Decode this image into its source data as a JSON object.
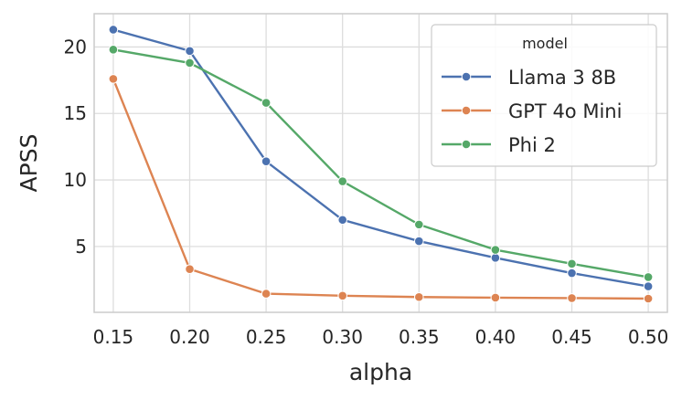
{
  "chart_data": {
    "type": "line",
    "xlabel": "alpha",
    "ylabel": "APSS",
    "x": [
      0.15,
      0.2,
      0.25,
      0.3,
      0.35,
      0.4,
      0.45,
      0.5
    ],
    "x_tick_labels": [
      "0.15",
      "0.20",
      "0.25",
      "0.30",
      "0.35",
      "0.40",
      "0.45",
      "0.50"
    ],
    "y_ticks": [
      5,
      10,
      15,
      20
    ],
    "y_tick_labels": [
      "5",
      "10",
      "15",
      "20"
    ],
    "xlim": [
      0.1375,
      0.5125
    ],
    "ylim": [
      0.05,
      22.5
    ],
    "grid": true,
    "legend": {
      "title": "model",
      "placement": "top-right"
    },
    "series": [
      {
        "name": "Llama 3 8B",
        "color": "#4c72b0",
        "values": [
          21.3,
          19.7,
          11.4,
          7.0,
          5.4,
          4.15,
          3.0,
          2.0
        ]
      },
      {
        "name": "GPT 4o Mini",
        "color": "#dd8452",
        "values": [
          17.6,
          3.3,
          1.45,
          1.3,
          1.2,
          1.15,
          1.12,
          1.08
        ]
      },
      {
        "name": "Phi 2",
        "color": "#55a868",
        "values": [
          19.8,
          18.8,
          15.8,
          9.9,
          6.65,
          4.75,
          3.7,
          2.7
        ]
      }
    ]
  }
}
